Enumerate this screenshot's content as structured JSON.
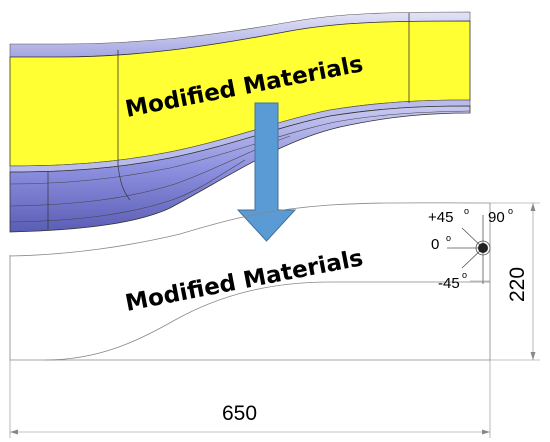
{
  "top_part": {
    "label": "Modified Materials",
    "fill_color": "#ffff33",
    "edge_color": "#8c8fe0"
  },
  "bottom_part": {
    "label": "Modified Materials"
  },
  "arrow": {
    "color": "#5b9bd5"
  },
  "dimensions": {
    "width": "650",
    "height": "220"
  },
  "ply_angles": {
    "p45": "+45",
    "p90": "90",
    "zero": "0",
    "m45": "-45",
    "degree_mark": "o"
  }
}
